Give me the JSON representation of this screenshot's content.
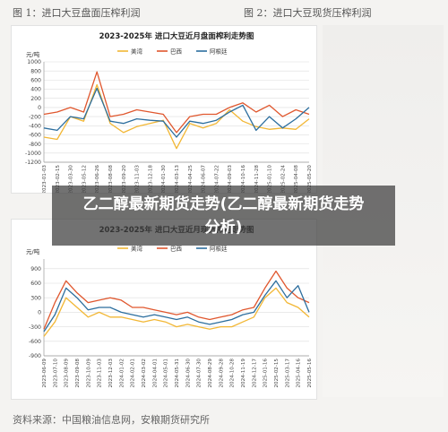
{
  "captions": {
    "fig1": "图 1：进口大豆盘面压榨利润",
    "fig2": "图 2：进口大豆现货压榨利润"
  },
  "overlay": {
    "text": "乙二醇最新期货走势(乙二醇最新期货走势分析)"
  },
  "source": "资料来源：中国粮油信息网，安粮期货研究所",
  "colors": {
    "usa": "#f2b735",
    "brazil": "#e0572e",
    "argentina": "#2c6e9e"
  },
  "chart_data": [
    {
      "type": "line",
      "title": "2023-2025年 进口大豆近月盘面榨利走势图",
      "ylabel": "元/吨",
      "ylim": [
        -1200,
        1000
      ],
      "yticks": [
        -1200,
        -1000,
        -800,
        -600,
        -400,
        -200,
        0,
        200,
        400,
        600,
        800,
        1000
      ],
      "legend": [
        "美湾",
        "巴西",
        "阿根廷"
      ],
      "legend_position": "top",
      "grid": true,
      "x": [
        "2023-01-03",
        "2023-02-15",
        "2023-03-30",
        "2023-05-12",
        "2023-06-26",
        "2023-08-08",
        "2023-09-20",
        "2023-11-03",
        "2023-12-18",
        "2024-01-30",
        "2024-03-13",
        "2024-04-25",
        "2024-06-07",
        "2024-07-22",
        "2024-09-03",
        "2024-10-16",
        "2024-11-28",
        "2025-01-10",
        "2025-02-24",
        "2025-04-08",
        "2025-05-20"
      ],
      "series": [
        {
          "name": "美湾",
          "values": [
            -650,
            -700,
            -200,
            -300,
            500,
            -350,
            -550,
            -420,
            -350,
            -280,
            -900,
            -350,
            -450,
            -350,
            -50,
            -300,
            -420,
            -480,
            -450,
            -480,
            -250
          ]
        },
        {
          "name": "巴西",
          "values": [
            -150,
            -100,
            0,
            -100,
            780,
            -200,
            -150,
            -50,
            -100,
            -150,
            -550,
            -200,
            -150,
            -150,
            0,
            100,
            -100,
            50,
            -200,
            -50,
            -150
          ]
        },
        {
          "name": "阿根廷",
          "values": [
            -450,
            -500,
            -200,
            -250,
            420,
            -300,
            -350,
            -250,
            -280,
            -300,
            -650,
            -300,
            -350,
            -280,
            -100,
            50,
            -500,
            -200,
            -450,
            -250,
            0
          ]
        }
      ]
    },
    {
      "type": "line",
      "title": "2023-2025年 进口大豆近月现货榨利走势图",
      "ylabel": "元/吨",
      "ylim": [
        -900,
        1100
      ],
      "yticks": [
        -900,
        -600,
        -300,
        0,
        300,
        600,
        900
      ],
      "xticklabels": [
        "2023-06-09",
        "2023-07-10",
        "2023-08-09",
        "2023-09-08",
        "2023-10-09",
        "2023-11-03",
        "2023-12-03",
        "2024-01-02",
        "2024-02-01",
        "2024-03-02",
        "2024-04-01",
        "2024-05-01",
        "2024-05-31",
        "2024-06-30",
        "2024-07-30",
        "2024-08-29",
        "2024-09-28",
        "2024-10-28",
        "2024-11-19",
        "2024-12-17",
        "2025-01-16",
        "2025-02-15",
        "2025-03-17",
        "2025-04-16",
        "2025-05-16"
      ],
      "legend": [
        "美湾",
        "巴西",
        "阿根廷"
      ],
      "legend_position": "top",
      "grid": true,
      "series": [
        {
          "name": "美湾",
          "values": [
            -500,
            -200,
            300,
            100,
            -100,
            0,
            -100,
            -100,
            -150,
            -200,
            -150,
            -200,
            -300,
            -250,
            -300,
            -350,
            -300,
            -300,
            -200,
            -100,
            300,
            500,
            200,
            100,
            -100
          ]
        },
        {
          "name": "巴西",
          "values": [
            -350,
            200,
            650,
            400,
            200,
            250,
            300,
            250,
            100,
            100,
            50,
            0,
            -50,
            0,
            -100,
            -150,
            -100,
            -50,
            50,
            100,
            500,
            850,
            500,
            300,
            200
          ]
        },
        {
          "name": "阿根廷",
          "values": [
            -400,
            -50,
            500,
            300,
            50,
            100,
            100,
            0,
            -50,
            -100,
            -50,
            -100,
            -150,
            -100,
            -200,
            -250,
            -200,
            -150,
            -50,
            0,
            350,
            650,
            300,
            550,
            0
          ]
        }
      ]
    }
  ]
}
